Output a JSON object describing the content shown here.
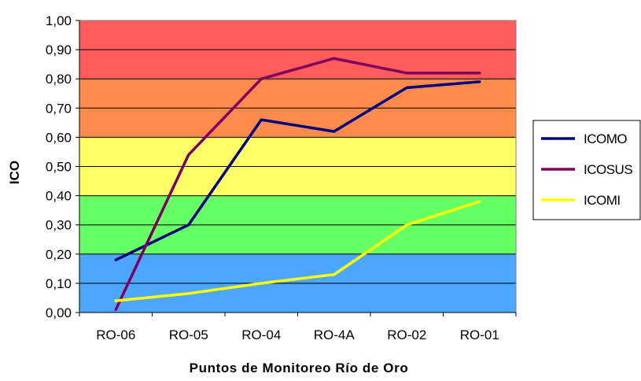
{
  "chart_data": {
    "type": "line",
    "title": "",
    "xlabel": "Puntos de Monitoreo Río de Oro",
    "ylabel": "ICO",
    "categories": [
      "RO-06",
      "RO-05",
      "RO-04",
      "RO-4A",
      "RO-02",
      "RO-01"
    ],
    "ylim": [
      0,
      1
    ],
    "yticks": [
      "0,00",
      "0,10",
      "0,20",
      "0,30",
      "0,40",
      "0,50",
      "0,60",
      "0,70",
      "0,80",
      "0,90",
      "1,00"
    ],
    "grid": true,
    "legend_position": "right",
    "background_bands": [
      {
        "from": 0.0,
        "to": 0.2,
        "color": "#4da6ff"
      },
      {
        "from": 0.2,
        "to": 0.4,
        "color": "#66ff66"
      },
      {
        "from": 0.4,
        "to": 0.6,
        "color": "#ffff66"
      },
      {
        "from": 0.6,
        "to": 0.8,
        "color": "#ff8c4d"
      },
      {
        "from": 0.8,
        "to": 1.0,
        "color": "#ff5c5c"
      }
    ],
    "series": [
      {
        "name": "ICOMO",
        "color": "#000080",
        "values": [
          0.18,
          0.3,
          0.66,
          0.62,
          0.77,
          0.79
        ]
      },
      {
        "name": "ICOSUS",
        "color": "#800060",
        "values": [
          0.01,
          0.54,
          0.8,
          0.87,
          0.82,
          0.82
        ]
      },
      {
        "name": "ICOMI",
        "color": "#ffff00",
        "values": [
          0.04,
          0.065,
          0.1,
          0.13,
          0.3,
          0.38
        ]
      }
    ]
  }
}
